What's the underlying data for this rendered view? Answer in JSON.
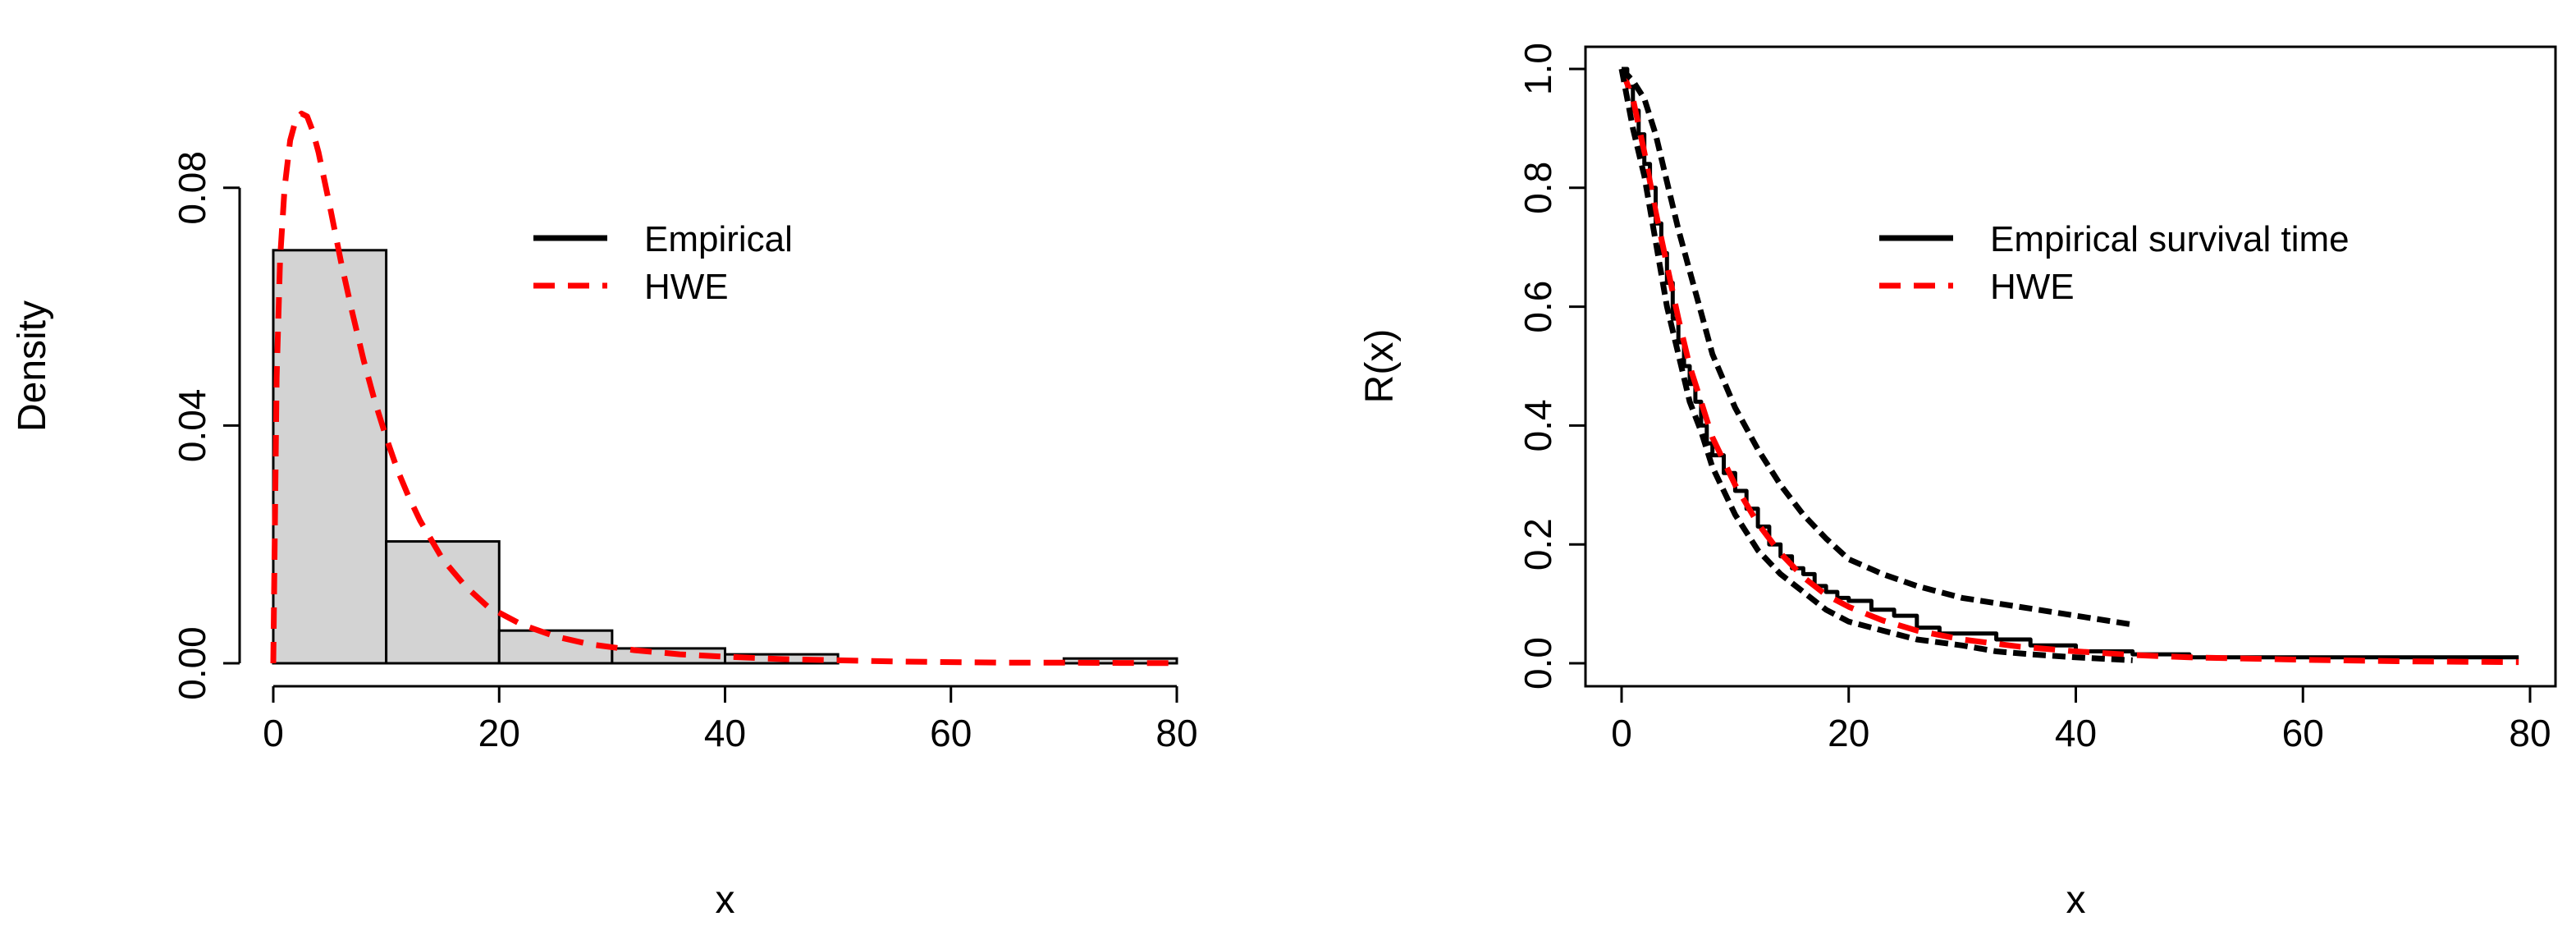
{
  "chart_data": [
    {
      "type": "bar",
      "subtype": "histogram-with-density",
      "xlabel": "x",
      "ylabel": "Density",
      "xlim": [
        0,
        80
      ],
      "ylim": [
        0,
        0.1
      ],
      "xticks": [
        "0",
        "20",
        "40",
        "60",
        "80"
      ],
      "yticks": [
        "0.00",
        "0.04",
        "0.08"
      ],
      "grid": false,
      "bins": [
        {
          "from": 0,
          "to": 10,
          "value": 0.0695
        },
        {
          "from": 10,
          "to": 20,
          "value": 0.0205
        },
        {
          "from": 20,
          "to": 30,
          "value": 0.0055
        },
        {
          "from": 30,
          "to": 40,
          "value": 0.0025
        },
        {
          "from": 40,
          "to": 50,
          "value": 0.0015
        },
        {
          "from": 50,
          "to": 60,
          "value": 0.0
        },
        {
          "from": 60,
          "to": 70,
          "value": 0.0
        },
        {
          "from": 70,
          "to": 80,
          "value": 0.0008
        }
      ],
      "series": [
        {
          "name": "HWE",
          "color": "#ff0000",
          "style": "dashed",
          "x": [
            0,
            0.3,
            0.6,
            1,
            1.5,
            2,
            2.5,
            3,
            3.5,
            4,
            5,
            6,
            7,
            8,
            9,
            10,
            11,
            12,
            13,
            15,
            17,
            19,
            22,
            25,
            28,
            32,
            36,
            40,
            45,
            50,
            55,
            60,
            65,
            70,
            75,
            80
          ],
          "y": [
            0.0,
            0.048,
            0.068,
            0.08,
            0.088,
            0.0915,
            0.0925,
            0.092,
            0.0895,
            0.086,
            0.077,
            0.0675,
            0.059,
            0.051,
            0.044,
            0.038,
            0.0325,
            0.028,
            0.024,
            0.0175,
            0.013,
            0.0095,
            0.0065,
            0.0045,
            0.0032,
            0.0022,
            0.0015,
            0.0011,
            0.0007,
            0.0005,
            0.0003,
            0.0002,
            0.0001,
            0.0001,
            5e-05,
            3e-05
          ]
        }
      ],
      "legend": {
        "position": "top-right",
        "entries": [
          {
            "label": "Empirical",
            "color": "#000000",
            "style": "solid"
          },
          {
            "label": "HWE",
            "color": "#ff0000",
            "style": "dashed"
          }
        ]
      },
      "colors": {
        "bar_fill": "#d3d3d3",
        "bar_stroke": "#000000"
      }
    },
    {
      "type": "line",
      "xlabel": "x",
      "ylabel": "R(x)",
      "xlim": [
        0,
        80
      ],
      "ylim": [
        0,
        1
      ],
      "xticks": [
        "0",
        "20",
        "40",
        "60",
        "80"
      ],
      "yticks": [
        "0.0",
        "0.2",
        "0.4",
        "0.6",
        "0.8",
        "1.0"
      ],
      "grid": false,
      "series": [
        {
          "name": "Empirical survival time",
          "color": "#000000",
          "style": "solid-step",
          "x": [
            0,
            0.5,
            1,
            1.5,
            2,
            2.5,
            3,
            3.5,
            4,
            4.5,
            5,
            5.5,
            6,
            6.5,
            7,
            7.5,
            8,
            9,
            10,
            11,
            12,
            13,
            14,
            15,
            16,
            17,
            18,
            19,
            20,
            22,
            24,
            26,
            28,
            30,
            33,
            36,
            40,
            45,
            50,
            79
          ],
          "y": [
            1.0,
            0.97,
            0.93,
            0.89,
            0.84,
            0.8,
            0.74,
            0.69,
            0.64,
            0.58,
            0.54,
            0.5,
            0.47,
            0.44,
            0.4,
            0.37,
            0.35,
            0.32,
            0.29,
            0.26,
            0.23,
            0.2,
            0.18,
            0.16,
            0.15,
            0.13,
            0.12,
            0.11,
            0.105,
            0.09,
            0.08,
            0.06,
            0.05,
            0.05,
            0.04,
            0.03,
            0.02,
            0.015,
            0.01,
            0.01
          ]
        },
        {
          "name": "HWE",
          "color": "#ff0000",
          "style": "dashed",
          "x": [
            0,
            1,
            2,
            3,
            4,
            5,
            6,
            7,
            8,
            10,
            12,
            14,
            16,
            18,
            20,
            23,
            26,
            30,
            35,
            40,
            45,
            50,
            60,
            70,
            79
          ],
          "y": [
            1.0,
            0.95,
            0.86,
            0.76,
            0.67,
            0.58,
            0.5,
            0.44,
            0.38,
            0.3,
            0.235,
            0.185,
            0.145,
            0.115,
            0.095,
            0.072,
            0.055,
            0.04,
            0.028,
            0.02,
            0.014,
            0.01,
            0.006,
            0.003,
            0.002
          ]
        },
        {
          "name": "",
          "color": "#000000",
          "style": "dotted-bound",
          "x": [
            0,
            1,
            2,
            3,
            4,
            5,
            6,
            7,
            8,
            10,
            12,
            14,
            16,
            18,
            20,
            23,
            26,
            30,
            35,
            40,
            45
          ],
          "y": [
            1.0,
            0.98,
            0.95,
            0.89,
            0.81,
            0.73,
            0.66,
            0.59,
            0.52,
            0.43,
            0.36,
            0.3,
            0.25,
            0.21,
            0.175,
            0.15,
            0.13,
            0.11,
            0.095,
            0.08,
            0.065
          ]
        },
        {
          "name": "",
          "color": "#000000",
          "style": "dotted-bound",
          "x": [
            0,
            1,
            2,
            3,
            4,
            5,
            6,
            7,
            8,
            10,
            12,
            14,
            16,
            18,
            20,
            23,
            26,
            30,
            33,
            36,
            40,
            45
          ],
          "y": [
            1.0,
            0.9,
            0.82,
            0.71,
            0.6,
            0.52,
            0.44,
            0.39,
            0.33,
            0.25,
            0.19,
            0.15,
            0.12,
            0.09,
            0.07,
            0.055,
            0.04,
            0.03,
            0.02,
            0.015,
            0.01,
            0.005
          ]
        }
      ],
      "legend": {
        "position": "top-right",
        "entries": [
          {
            "label": "Empirical survival time",
            "color": "#000000",
            "style": "solid"
          },
          {
            "label": "HWE",
            "color": "#ff0000",
            "style": "dashed"
          }
        ]
      }
    }
  ]
}
